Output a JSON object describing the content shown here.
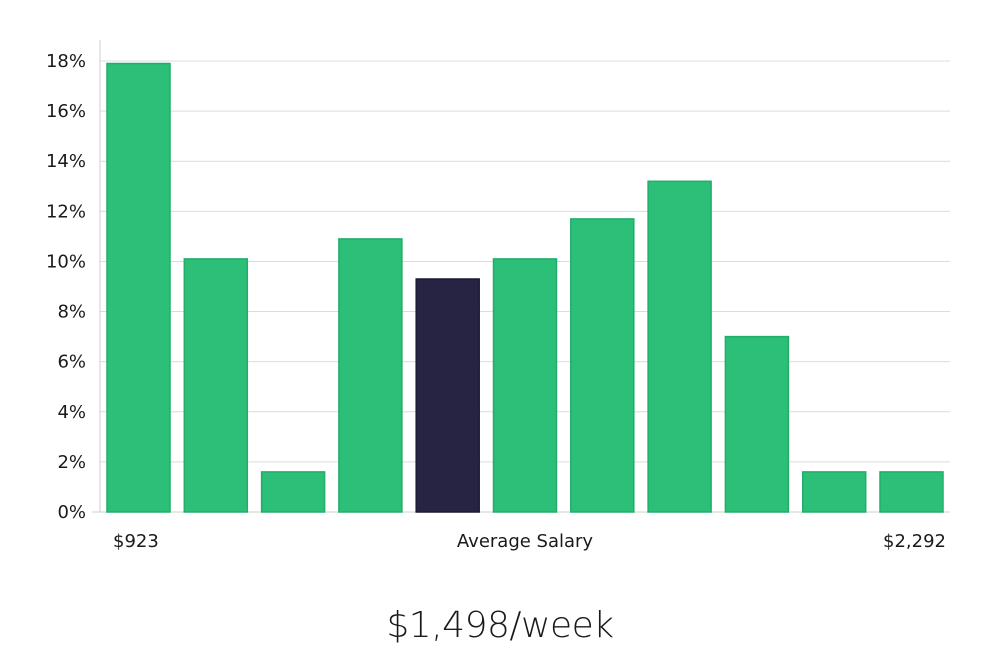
{
  "chart_data": {
    "type": "bar",
    "categories": [
      "",
      "",
      "",
      "",
      "",
      "",
      "",
      "",
      "",
      "",
      ""
    ],
    "values": [
      17.9,
      10.1,
      1.6,
      10.9,
      9.3,
      10.1,
      11.7,
      13.2,
      7.0,
      1.6,
      1.6
    ],
    "highlight_index": 4,
    "ylim": [
      0,
      18
    ],
    "yticks": [
      0,
      2,
      4,
      6,
      8,
      10,
      12,
      14,
      16,
      18
    ],
    "ytick_labels": [
      "0%",
      "2%",
      "4%",
      "6%",
      "8%",
      "10%",
      "12%",
      "14%",
      "16%",
      "18%"
    ],
    "x_labels": {
      "left": "$923",
      "center": "Average Salary",
      "right": "$2,292"
    },
    "grid": true,
    "colors": {
      "bar": "#2bbf77",
      "bar_edge": "#22ad6a",
      "highlight": "#272443",
      "grid": "#dcdcdc",
      "axis": "#cfcfcf"
    }
  },
  "headline": "$1,498/week"
}
